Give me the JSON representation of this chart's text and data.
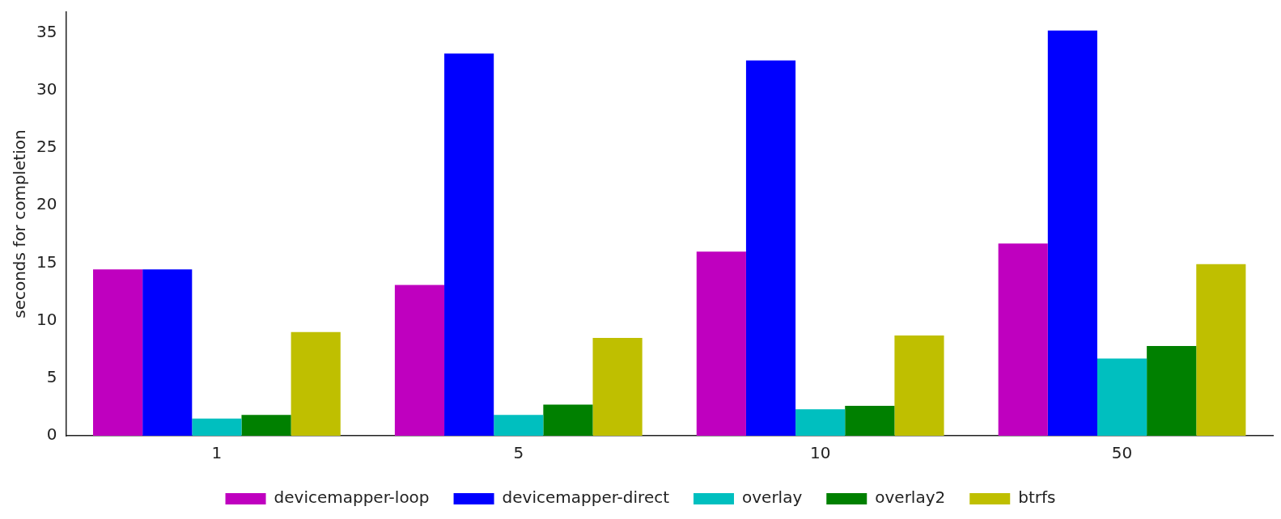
{
  "chart_data": {
    "type": "bar",
    "ylabel": "seconds for completion",
    "categories": [
      "1",
      "5",
      "10",
      "50"
    ],
    "series": [
      {
        "name": "devicemapper-loop",
        "color": "#bf00bf",
        "values": [
          14.45,
          13.1,
          16.0,
          16.7
        ]
      },
      {
        "name": "devicemapper-direct",
        "color": "#0000ff",
        "values": [
          14.45,
          33.2,
          32.6,
          35.2
        ]
      },
      {
        "name": "overlay",
        "color": "#00bfbf",
        "values": [
          1.5,
          1.8,
          2.3,
          6.7
        ]
      },
      {
        "name": "overlay2",
        "color": "#008000",
        "values": [
          1.8,
          2.7,
          2.6,
          7.8
        ]
      },
      {
        "name": "btrfs",
        "color": "#bfbf00",
        "values": [
          9.0,
          8.5,
          8.7,
          14.9
        ]
      }
    ],
    "ylim": [
      0,
      36.8
    ],
    "yticks": [
      0,
      5,
      10,
      15,
      20,
      25,
      30,
      35
    ],
    "grid": false,
    "legend": "bottom"
  }
}
